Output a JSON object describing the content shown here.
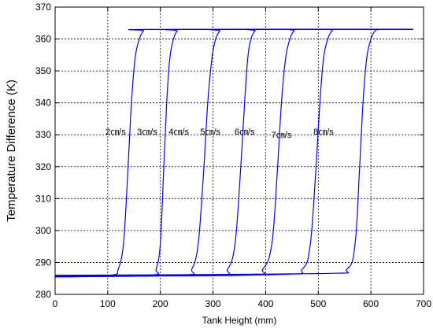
{
  "chart_data": {
    "type": "line",
    "xlabel": "Tank Height (mm)",
    "ylabel": "Temperature Difference (K)",
    "xlim": [
      0,
      700
    ],
    "ylim": [
      280,
      370
    ],
    "xticks": [
      "0",
      "100",
      "200",
      "300",
      "400",
      "500",
      "600",
      "700"
    ],
    "yticks": [
      "280",
      "290",
      "300",
      "310",
      "320",
      "330",
      "340",
      "350",
      "360",
      "370"
    ],
    "grid": true,
    "line_color": "#0000ff",
    "series": [
      {
        "name": "2㎝/s",
        "x": [
          0,
          105,
          120,
          130,
          138,
          145,
          152,
          160,
          168,
          180,
          680
        ],
        "y": [
          285.5,
          286,
          288,
          296,
          318,
          340,
          354,
          360,
          362.5,
          363,
          363
        ]
      },
      {
        "name": "3㎝/s",
        "x": [
          0,
          180,
          192,
          200,
          206,
          212,
          218,
          225,
          232,
          244,
          680
        ],
        "y": [
          285.5,
          286,
          288,
          296,
          318,
          340,
          354,
          360,
          362.5,
          363,
          363
        ]
      },
      {
        "name": "4㎝/s",
        "x": [
          0,
          240,
          260,
          272,
          282,
          290,
          298,
          305,
          313,
          322,
          680
        ],
        "y": [
          285.5,
          286,
          288,
          296,
          318,
          340,
          354,
          360,
          362.5,
          363,
          363
        ]
      },
      {
        "name": "5㎝/s",
        "x": [
          0,
          300,
          328,
          342,
          352,
          360,
          366,
          372,
          380,
          390,
          680
        ],
        "y": [
          285.8,
          286,
          288,
          296,
          318,
          340,
          354,
          360,
          362.5,
          363,
          363
        ]
      },
      {
        "name": "6㎝/s",
        "x": [
          0,
          360,
          395,
          412,
          422,
          430,
          438,
          446,
          454,
          465,
          680
        ],
        "y": [
          285.8,
          286,
          288,
          296,
          318,
          340,
          354,
          360,
          362.5,
          363,
          363
        ]
      },
      {
        "name": "7㎝/s",
        "x": [
          0,
          420,
          470,
          485,
          495,
          503,
          510,
          518,
          526,
          538,
          680
        ],
        "y": [
          285.8,
          286.2,
          288,
          296,
          318,
          340,
          354,
          360,
          362.5,
          363,
          363
        ]
      },
      {
        "name": "8㎝/s",
        "x": [
          0,
          500,
          555,
          570,
          578,
          585,
          592,
          600,
          608,
          620,
          680
        ],
        "y": [
          286,
          286.5,
          288,
          296,
          318,
          340,
          354,
          360,
          362.5,
          363,
          363
        ]
      }
    ],
    "annotations": [
      {
        "text": "2㎝/s",
        "x": 115,
        "y": 331
      },
      {
        "text": "3㎝/s",
        "x": 175,
        "y": 331
      },
      {
        "text": "4㎝/s",
        "x": 235,
        "y": 331
      },
      {
        "text": "5㎝/s",
        "x": 295,
        "y": 331
      },
      {
        "text": "6㎝/s",
        "x": 360,
        "y": 331
      },
      {
        "text": "7㎝/s",
        "x": 430,
        "y": 330
      },
      {
        "text": "8㎝/s",
        "x": 510,
        "y": 331
      }
    ]
  }
}
